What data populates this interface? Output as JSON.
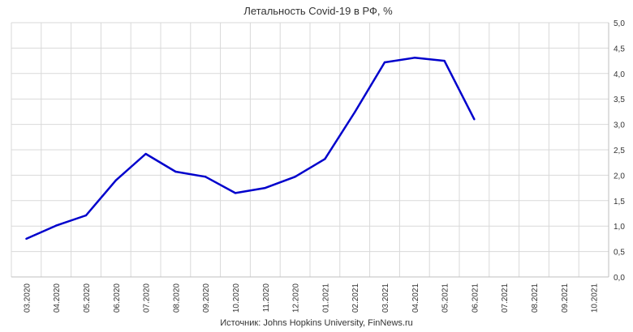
{
  "chart_data": {
    "type": "line",
    "title": "Летальность Covid-19 в РФ, %",
    "source": "Источник: Johns Hopkins University, FinNews.ru",
    "categories": [
      "03.2020",
      "04.2020",
      "05.2020",
      "06.2020",
      "07.2020",
      "08.2020",
      "09.2020",
      "10.2020",
      "11.2020",
      "12.2020",
      "01.2021",
      "02.2021",
      "03.2021",
      "04.2021",
      "05.2021",
      "06.2021",
      "07.2021",
      "08.2021",
      "09.2021",
      "10.2021"
    ],
    "yticks": [
      "0,0",
      "0,5",
      "1,0",
      "1,5",
      "2,0",
      "2,5",
      "3,0",
      "3,5",
      "4,0",
      "4,5",
      "5,0"
    ],
    "ylim": [
      0,
      5
    ],
    "y_axis_position": "right",
    "grid": true,
    "legend": "none",
    "series": [
      {
        "color": "#0000cc",
        "values": [
          0.75,
          1.01,
          1.21,
          1.9,
          2.42,
          2.07,
          1.97,
          1.65,
          1.75,
          1.97,
          2.32,
          3.24,
          4.22,
          4.31,
          4.25,
          3.1,
          null,
          null,
          null,
          null
        ]
      }
    ]
  }
}
